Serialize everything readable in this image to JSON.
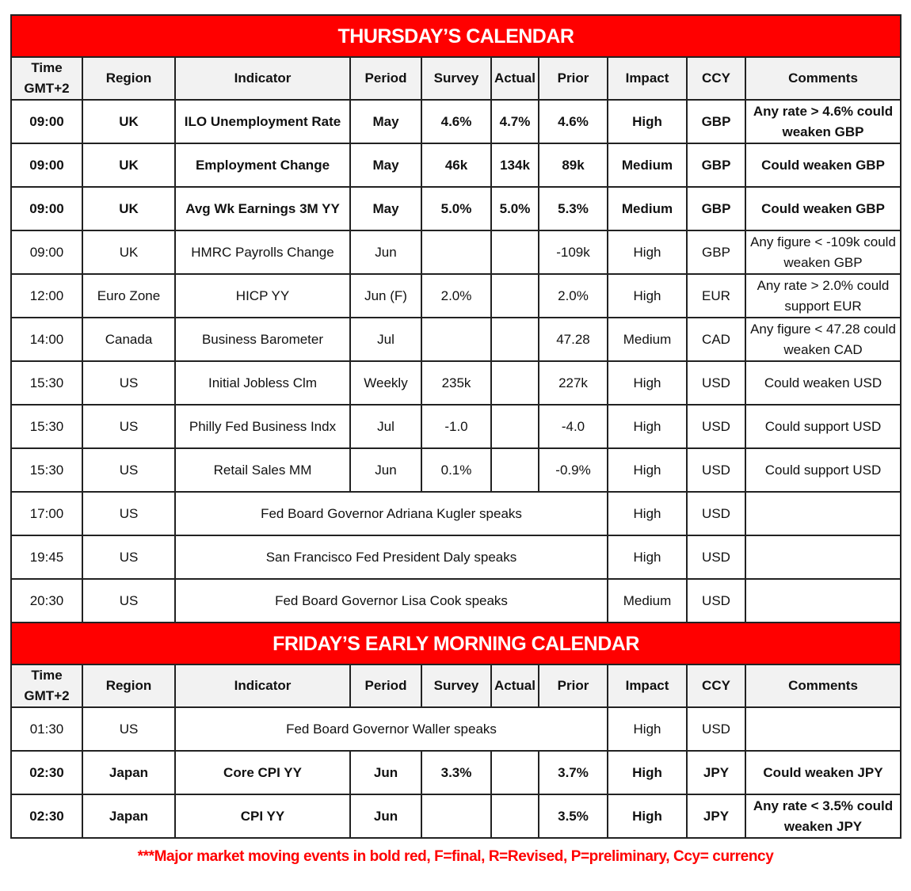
{
  "columns": [
    "Time GMT+2",
    "Region",
    "Indicator",
    "Period",
    "Survey",
    "Actual",
    "Prior",
    "Impact",
    "CCY",
    "Comments"
  ],
  "thursday": {
    "title": "THURSDAY’S CALENDAR",
    "rows": [
      {
        "time": "09:00",
        "region": "UK",
        "indicator": "ILO Unemployment Rate",
        "period": "May",
        "survey": "4.6%",
        "actual": "4.7%",
        "prior": "4.6%",
        "impact": "High",
        "ccy": "GBP",
        "comments": "Any rate > 4.6% could weaken GBP",
        "bold": true
      },
      {
        "time": "09:00",
        "region": "UK",
        "indicator": "Employment Change",
        "period": "May",
        "survey": "46k",
        "actual": "134k",
        "prior": "89k",
        "impact": "Medium",
        "ccy": "GBP",
        "comments": "Could weaken GBP",
        "bold": true
      },
      {
        "time": "09:00",
        "region": "UK",
        "indicator": "Avg Wk Earnings 3M YY",
        "period": "May",
        "survey": "5.0%",
        "actual": "5.0%",
        "prior": "5.3%",
        "impact": "Medium",
        "ccy": "GBP",
        "comments": "Could weaken GBP",
        "bold": true
      },
      {
        "time": "09:00",
        "region": "UK",
        "indicator": "HMRC Payrolls Change",
        "period": "Jun",
        "survey": "",
        "actual": "",
        "prior": "-109k",
        "impact": "High",
        "ccy": "GBP",
        "comments": "Any figure < -109k could weaken GBP"
      },
      {
        "time": "12:00",
        "region": "Euro Zone",
        "indicator": "HICP YY",
        "period": "Jun (F)",
        "survey": "2.0%",
        "actual": "",
        "prior": "2.0%",
        "impact": "High",
        "ccy": "EUR",
        "comments": "Any rate > 2.0% could support EUR"
      },
      {
        "time": "14:00",
        "region": "Canada",
        "indicator": "Business Barometer",
        "period": "Jul",
        "survey": "",
        "actual": "",
        "prior": "47.28",
        "impact": "Medium",
        "ccy": "CAD",
        "comments": "Any figure < 47.28 could weaken CAD"
      },
      {
        "time": "15:30",
        "region": "US",
        "indicator": "Initial Jobless Clm",
        "period": "Weekly",
        "survey": "235k",
        "actual": "",
        "prior": "227k",
        "impact": "High",
        "ccy": "USD",
        "comments": "Could weaken USD"
      },
      {
        "time": "15:30",
        "region": "US",
        "indicator": "Philly Fed Business Indx",
        "period": "Jul",
        "survey": "-1.0",
        "actual": "",
        "prior": "-4.0",
        "impact": "High",
        "ccy": "USD",
        "comments": "Could support USD"
      },
      {
        "time": "15:30",
        "region": "US",
        "indicator": "Retail Sales MM",
        "period": "Jun",
        "survey": "0.1%",
        "actual": "",
        "prior": "-0.9%",
        "impact": "High",
        "ccy": "USD",
        "comments": "Could support USD"
      },
      {
        "time": "17:00",
        "region": "US",
        "indicator": "Fed Board Governor Adriana Kugler speaks",
        "span": true,
        "impact": "High",
        "ccy": "USD",
        "comments": ""
      },
      {
        "time": "19:45",
        "region": "US",
        "indicator": "San Francisco Fed President Daly speaks",
        "span": true,
        "impact": "High",
        "ccy": "USD",
        "comments": ""
      },
      {
        "time": "20:30",
        "region": "US",
        "indicator": "Fed Board Governor Lisa Cook speaks",
        "span": true,
        "impact": "Medium",
        "ccy": "USD",
        "comments": ""
      }
    ]
  },
  "friday": {
    "title": "FRIDAY’S EARLY MORNING CALENDAR",
    "rows": [
      {
        "time": "01:30",
        "region": "US",
        "indicator": "Fed Board Governor Waller speaks",
        "span": true,
        "impact": "High",
        "ccy": "USD",
        "comments": ""
      },
      {
        "time": "02:30",
        "region": "Japan",
        "indicator": "Core CPI YY",
        "period": "Jun",
        "survey": "3.3%",
        "actual": "",
        "prior": "3.7%",
        "impact": "High",
        "ccy": "JPY",
        "comments": "Could weaken JPY",
        "bold": true
      },
      {
        "time": "02:30",
        "region": "Japan",
        "indicator": "CPI YY",
        "period": "Jun",
        "survey": "",
        "actual": "",
        "prior": "3.5%",
        "impact": "High",
        "ccy": "JPY",
        "comments": "Any rate < 3.5% could weaken JPY",
        "bold": true
      }
    ]
  },
  "footnote": "***Major market moving events in bold red, F=final, R=Revised, P=preliminary, Ccy= currency",
  "colors": {
    "banner": "#ff0000",
    "header_bg": "#f2f2f2",
    "footnote": "#ff0000"
  }
}
